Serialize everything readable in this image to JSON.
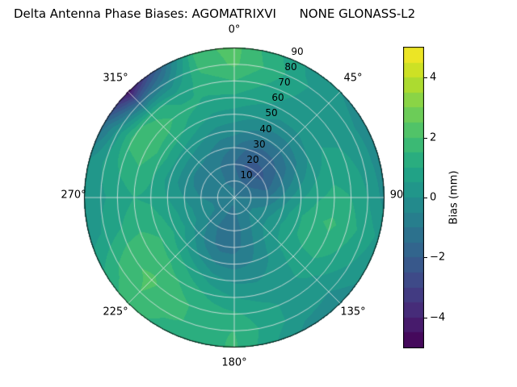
{
  "chart_data": {
    "type": "heatmap",
    "subtype": "polar_filled_contour",
    "title": "Delta Antenna Phase Biases: AGOMATRIXVI      NONE GLONASS-L2",
    "azimuth_tick_labels": [
      "0°",
      "45°",
      "90",
      "135°",
      "180°",
      "225°",
      "270°",
      "315°"
    ],
    "radial_tick_labels": [
      "10",
      "20",
      "30",
      "40",
      "50",
      "60",
      "70",
      "80",
      "90"
    ],
    "radial_axis_range": [
      0,
      90
    ],
    "azimuth_deg": [
      0,
      15,
      30,
      45,
      60,
      75,
      90,
      105,
      120,
      135,
      150,
      165,
      180,
      195,
      210,
      225,
      240,
      255,
      270,
      285,
      300,
      315,
      330,
      345
    ],
    "radius_deg": [
      0,
      10,
      20,
      30,
      40,
      50,
      60,
      70,
      80,
      90
    ],
    "values_mm": [
      [
        -0.8,
        -0.9,
        -1.0,
        -1.0,
        -1.0,
        -0.9,
        -0.9,
        -0.8,
        -0.8,
        -0.8,
        -0.8,
        -0.8,
        -0.9,
        -0.9,
        -0.9,
        -0.8,
        -0.8,
        -0.8,
        -0.8,
        -0.8,
        -0.8,
        -0.8,
        -0.8,
        -0.8
      ],
      [
        -1.2,
        -1.4,
        -1.5,
        -1.5,
        -1.4,
        -1.2,
        -1.0,
        -0.8,
        -0.6,
        -0.6,
        -0.7,
        -0.9,
        -1.1,
        -1.1,
        -0.9,
        -0.7,
        -0.6,
        -0.6,
        -0.7,
        -0.8,
        -0.9,
        -1.0,
        -1.0,
        -1.1
      ],
      [
        -1.5,
        -2.0,
        -2.2,
        -2.2,
        -2.0,
        -1.6,
        -1.0,
        -0.5,
        -0.2,
        -0.2,
        -0.5,
        -0.9,
        -1.3,
        -1.3,
        -1.0,
        -0.6,
        -0.3,
        -0.3,
        -0.5,
        -0.7,
        -0.8,
        -0.8,
        -0.9,
        -1.2
      ],
      [
        -1.0,
        -1.5,
        -1.8,
        -1.7,
        -1.4,
        -0.9,
        -0.3,
        0.2,
        0.4,
        0.3,
        -0.2,
        -0.8,
        -1.2,
        -1.2,
        -0.8,
        -0.2,
        0.2,
        0.2,
        0.0,
        -0.3,
        -0.4,
        -0.4,
        -0.5,
        -0.8
      ],
      [
        -0.3,
        -0.6,
        -0.9,
        -0.9,
        -0.7,
        -0.2,
        0.4,
        0.9,
        0.9,
        0.6,
        0.0,
        -0.5,
        -0.7,
        -0.6,
        -0.1,
        0.5,
        0.9,
        0.8,
        0.5,
        0.3,
        0.4,
        0.3,
        0.1,
        -0.2
      ],
      [
        0.3,
        0.1,
        -0.2,
        -0.2,
        0.0,
        0.4,
        0.9,
        1.4,
        1.2,
        0.7,
        0.2,
        -0.1,
        -0.1,
        0.2,
        0.8,
        1.3,
        1.5,
        1.2,
        0.9,
        1.0,
        1.3,
        1.2,
        0.8,
        0.4
      ],
      [
        0.9,
        0.6,
        0.3,
        0.3,
        0.5,
        0.8,
        1.2,
        1.6,
        1.3,
        0.7,
        0.3,
        0.3,
        0.5,
        0.9,
        1.4,
        1.8,
        1.9,
        1.3,
        1.0,
        1.4,
        1.9,
        1.8,
        1.2,
        0.9
      ],
      [
        1.5,
        1.0,
        0.5,
        0.3,
        0.4,
        0.7,
        1.0,
        1.3,
        0.9,
        0.4,
        0.3,
        0.7,
        1.1,
        1.3,
        1.7,
        2.1,
        1.9,
        1.0,
        0.7,
        1.1,
        1.7,
        1.3,
        0.7,
        1.2
      ],
      [
        2.1,
        1.4,
        0.6,
        0.2,
        0.1,
        0.3,
        0.5,
        0.8,
        0.5,
        0.0,
        0.2,
        0.8,
        1.5,
        1.4,
        1.6,
        2.0,
        1.5,
        0.6,
        0.4,
        0.6,
        0.2,
        -1.5,
        -0.5,
        1.6
      ],
      [
        2.2,
        1.2,
        0.4,
        0.0,
        -0.2,
        -0.3,
        -0.2,
        0.4,
        0.2,
        -0.4,
        -0.2,
        0.6,
        1.6,
        1.2,
        1.3,
        1.8,
        1.0,
        0.2,
        0.2,
        0.0,
        -1.5,
        -4.6,
        -1.8,
        1.8
      ]
    ],
    "levels_step_mm": 0.5,
    "colormap": "viridis",
    "colormap_stops": [
      [
        0.0,
        "#440154"
      ],
      [
        0.1,
        "#482475"
      ],
      [
        0.2,
        "#414487"
      ],
      [
        0.3,
        "#355f8d"
      ],
      [
        0.4,
        "#2a788e"
      ],
      [
        0.5,
        "#21918c"
      ],
      [
        0.6,
        "#22a884"
      ],
      [
        0.7,
        "#44bf70"
      ],
      [
        0.8,
        "#7ad151"
      ],
      [
        0.9,
        "#bddf26"
      ],
      [
        1.0,
        "#fde725"
      ]
    ],
    "grid": true,
    "grid_color": "#e8e8e8",
    "colorbar": {
      "label": "Bias (mm)",
      "tick_labels": [
        "4",
        "2",
        "0",
        "−2",
        "−4"
      ],
      "tick_values": [
        4,
        2,
        0,
        -2,
        -4
      ],
      "vmin": -5,
      "vmax": 5,
      "position": "right"
    }
  }
}
